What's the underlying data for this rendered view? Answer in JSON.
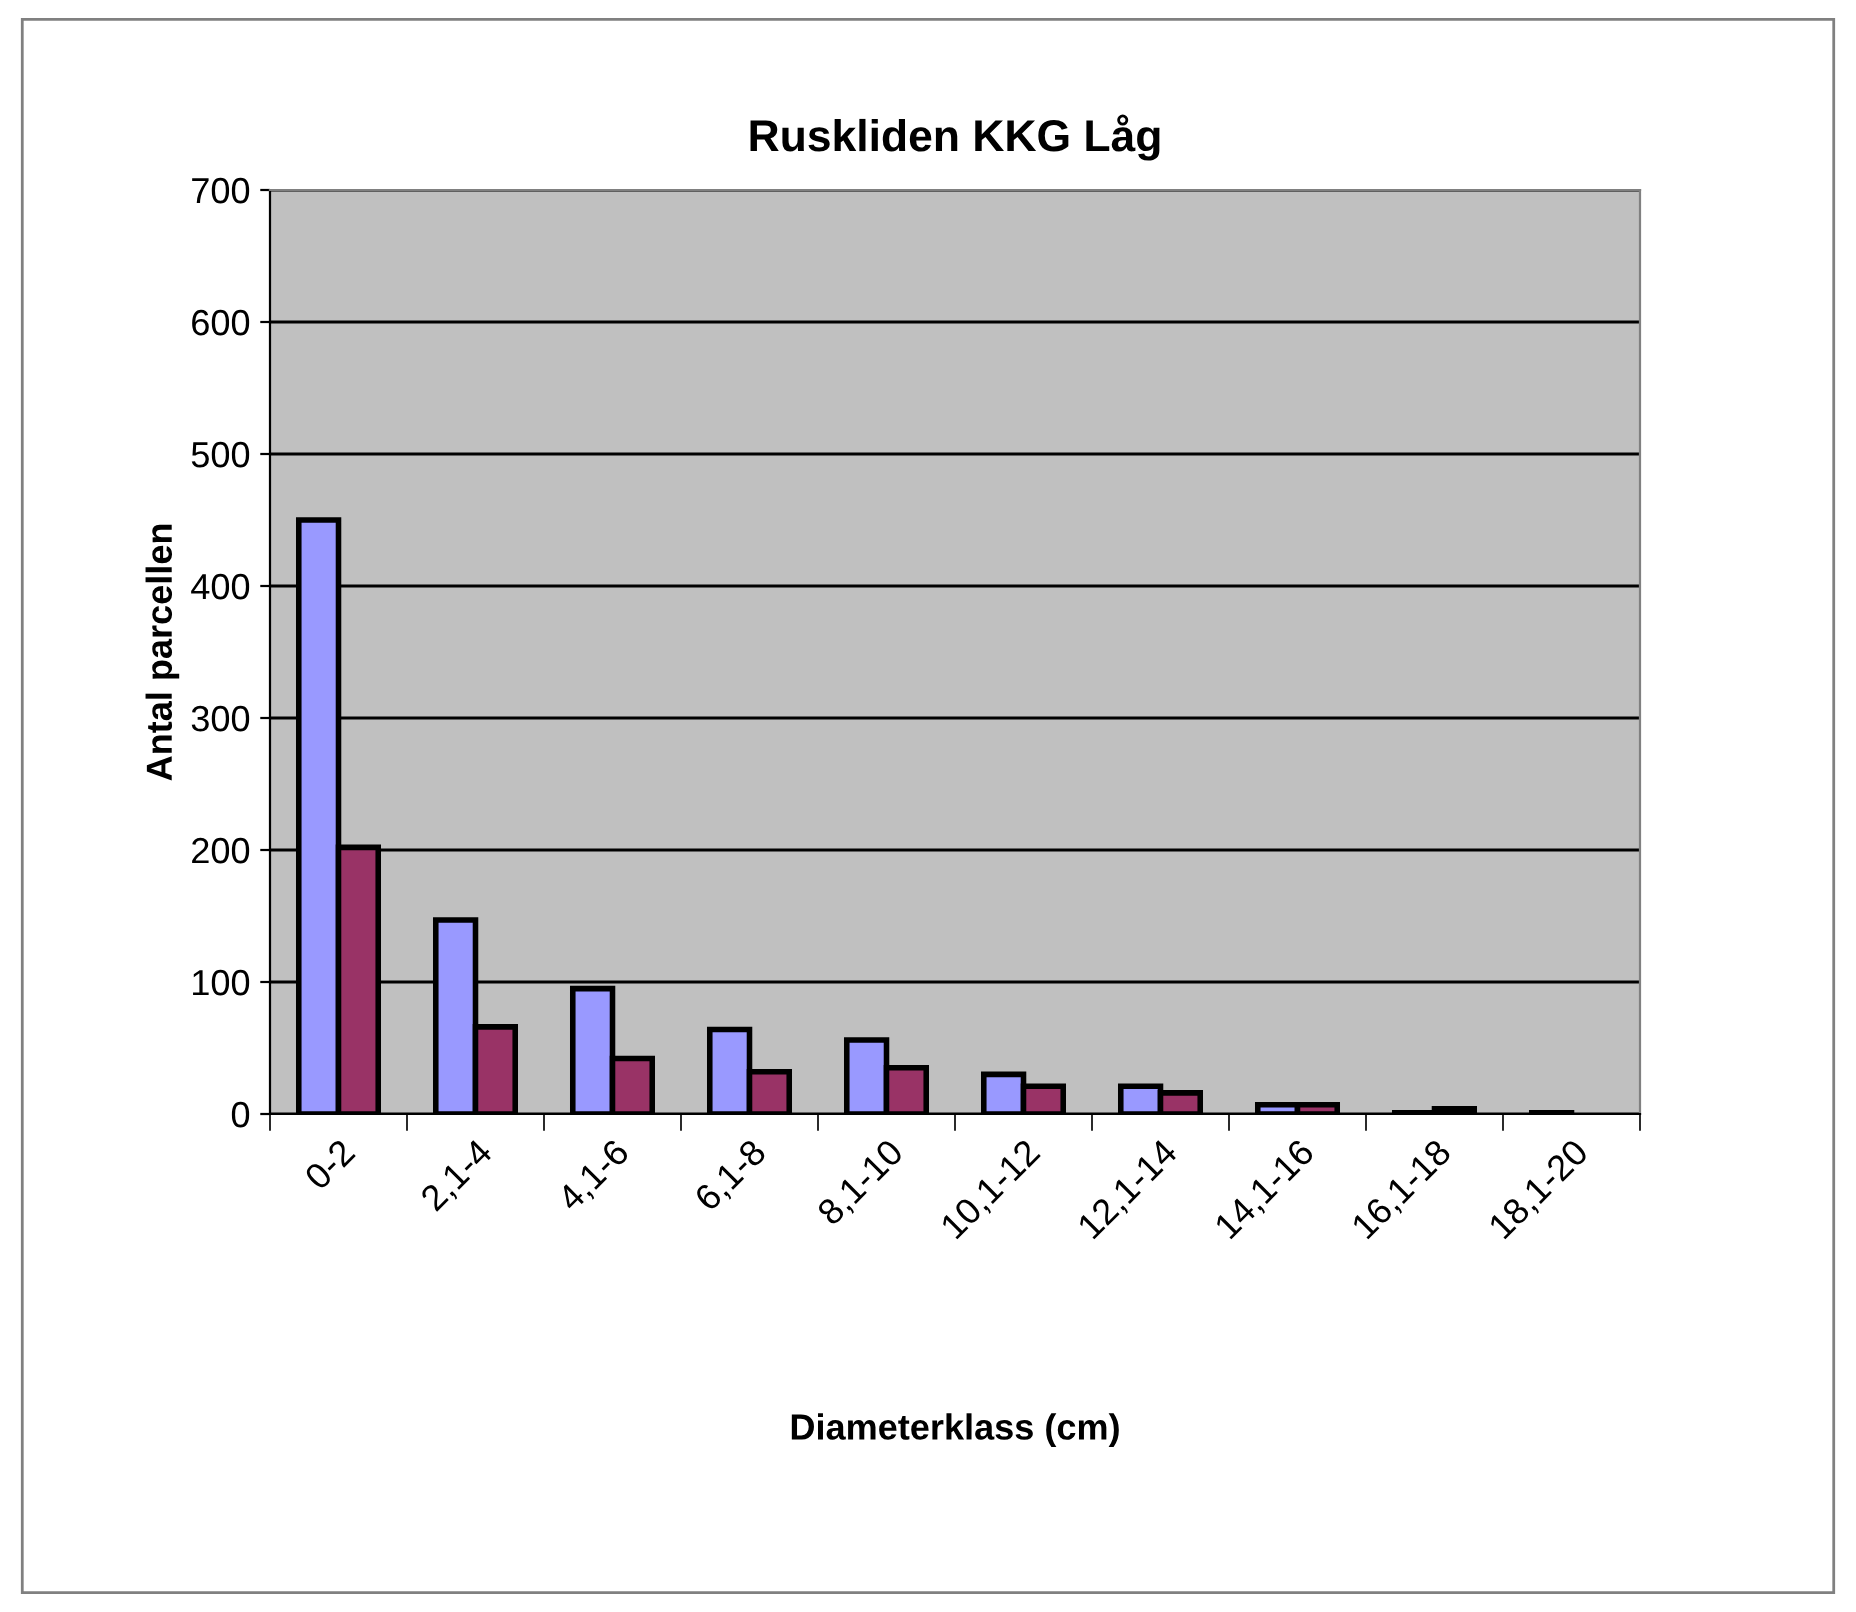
{
  "chart_data": {
    "type": "bar",
    "title": "Ruskliden KKG Låg",
    "xlabel": "Diameterklass (cm)",
    "ylabel": "Antal parcellen",
    "categories": [
      "0-2",
      "2,1-4",
      "4,1-6",
      "6,1-8",
      "8,1-10",
      "10,1-12",
      "12,1-14",
      "14,1-16",
      "16,1-18",
      "18,1-20"
    ],
    "series": [
      {
        "color": "#9999ff",
        "values": [
          450,
          147,
          95,
          64,
          56,
          30,
          21,
          7,
          1,
          1
        ]
      },
      {
        "color": "#993366",
        "values": [
          202,
          66,
          42,
          32,
          35,
          21,
          16,
          7,
          4,
          null
        ]
      }
    ],
    "ylim": [
      0,
      700
    ],
    "yticks": [
      0,
      100,
      200,
      300,
      400,
      500,
      600,
      700
    ],
    "grid": "y",
    "legend": false
  }
}
